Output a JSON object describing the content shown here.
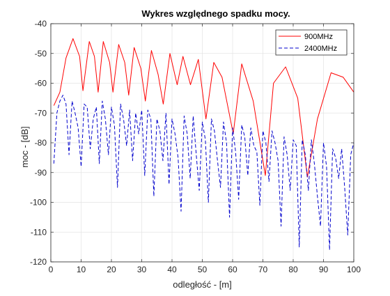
{
  "colors": {
    "background": "#ffffff",
    "plot_background": "#ffffff",
    "grid": "#e3e3e3",
    "axis": "#262626"
  },
  "chart_data": {
    "type": "line",
    "title": "Wykres względnego spadku mocy.",
    "xlabel": "odległość - [m]",
    "ylabel": "moc - [dB]",
    "xlim": [
      0,
      100
    ],
    "ylim": [
      -120,
      -40
    ],
    "xticks": [
      0,
      10,
      20,
      30,
      40,
      50,
      60,
      70,
      80,
      90,
      100
    ],
    "yticks": [
      -40,
      -50,
      -60,
      -70,
      -80,
      -90,
      -100,
      -110,
      -120
    ],
    "grid": true,
    "legend_location": "top-right",
    "series": [
      {
        "name": "900MHz",
        "color": "#ff0000",
        "line_style": "solid",
        "x": [
          1.0,
          3.0,
          5.0,
          7.3,
          9.5,
          10.6,
          12.7,
          14.4,
          15.6,
          17.3,
          19.4,
          20.5,
          22.4,
          24.4,
          25.7,
          27.5,
          29.7,
          31.2,
          33.2,
          35.4,
          37.1,
          39.3,
          41.7,
          43.6,
          46.1,
          48.7,
          51.2,
          53.8,
          56.5,
          60.2,
          63.0,
          66.8,
          70.8,
          73.5,
          77.5,
          81.5,
          84.7,
          88.0,
          92.5,
          96.5,
          100.0
        ],
        "y": [
          -67.5,
          -63.0,
          -51.5,
          -45.0,
          -51.0,
          -62.5,
          -46.0,
          -51.0,
          -63.0,
          -46.0,
          -53.0,
          -63.0,
          -47.0,
          -53.0,
          -64.0,
          -48.0,
          -55.0,
          -66.0,
          -49.0,
          -57.0,
          -67.0,
          -50.0,
          -60.5,
          -51.0,
          -60.5,
          -52.0,
          -72.0,
          -53.0,
          -58.0,
          -77.0,
          -53.5,
          -66.0,
          -91.0,
          -60.0,
          -54.5,
          -65.0,
          -91.5,
          -72.0,
          -56.5,
          -58.0,
          -63.0
        ]
      },
      {
        "name": "2400MHz",
        "color": "#0000cc",
        "line_style": "dashed",
        "x": [
          1.0,
          2.0,
          3.0,
          4.0,
          5.0,
          6.0,
          7.0,
          8.0,
          9.0,
          10.0,
          11.0,
          12.0,
          13.0,
          14.0,
          15.0,
          16.0,
          17.0,
          18.0,
          19.0,
          20.0,
          21.0,
          22.0,
          23.0,
          24.0,
          25.0,
          26.0,
          27.0,
          28.0,
          29.0,
          30.0,
          31.0,
          32.0,
          33.0,
          34.0,
          35.0,
          36.0,
          37.0,
          38.0,
          39.0,
          40.0,
          41.0,
          42.0,
          43.0,
          44.0,
          45.0,
          46.0,
          47.0,
          48.0,
          49.0,
          50.0,
          51.0,
          52.0,
          53.0,
          54.0,
          55.0,
          56.0,
          57.0,
          58.0,
          59.0,
          60.0,
          61.0,
          62.0,
          63.0,
          64.0,
          65.0,
          66.0,
          67.0,
          68.0,
          69.0,
          70.0,
          71.0,
          72.0,
          73.0,
          74.0,
          75.0,
          76.0,
          77.0,
          78.0,
          79.0,
          80.0,
          81.0,
          82.0,
          83.0,
          84.0,
          85.0,
          86.0,
          87.0,
          88.0,
          89.0,
          90.0,
          91.0,
          92.0,
          93.0,
          94.0,
          95.0,
          96.0,
          97.0,
          98.0,
          99.0,
          100.0
        ],
        "y": [
          -87.0,
          -70.0,
          -66.0,
          -64.0,
          -67.0,
          -84.0,
          -66.0,
          -70.0,
          -75.0,
          -88.0,
          -67.0,
          -68.0,
          -82.0,
          -72.0,
          -68.0,
          -87.0,
          -66.0,
          -72.0,
          -84.0,
          -68.0,
          -74.0,
          -95.0,
          -67.0,
          -72.0,
          -81.0,
          -69.0,
          -86.0,
          -70.0,
          -77.0,
          -69.0,
          -91.0,
          -69.0,
          -72.0,
          -98.0,
          -72.0,
          -76.0,
          -86.0,
          -70.0,
          -94.0,
          -72.0,
          -77.0,
          -85.0,
          -103.0,
          -71.0,
          -77.0,
          -92.0,
          -71.0,
          -84.0,
          -96.0,
          -73.0,
          -79.0,
          -100.0,
          -72.0,
          -76.0,
          -86.0,
          -95.0,
          -73.0,
          -80.0,
          -105.0,
          -75.0,
          -83.0,
          -99.0,
          -74.0,
          -78.0,
          -91.0,
          -75.0,
          -81.0,
          -83.0,
          -101.0,
          -76.0,
          -80.0,
          -93.0,
          -76.0,
          -80.0,
          -86.0,
          -108.0,
          -78.0,
          -84.0,
          -96.0,
          -79.0,
          -81.0,
          -115.0,
          -79.0,
          -84.0,
          -96.0,
          -79.0,
          -87.0,
          -98.0,
          -108.0,
          -80.0,
          -88.0,
          -116.0,
          -82.0,
          -85.0,
          -92.0,
          -82.0,
          -95.0,
          -111.0,
          -84.0,
          -80.0
        ]
      }
    ]
  }
}
